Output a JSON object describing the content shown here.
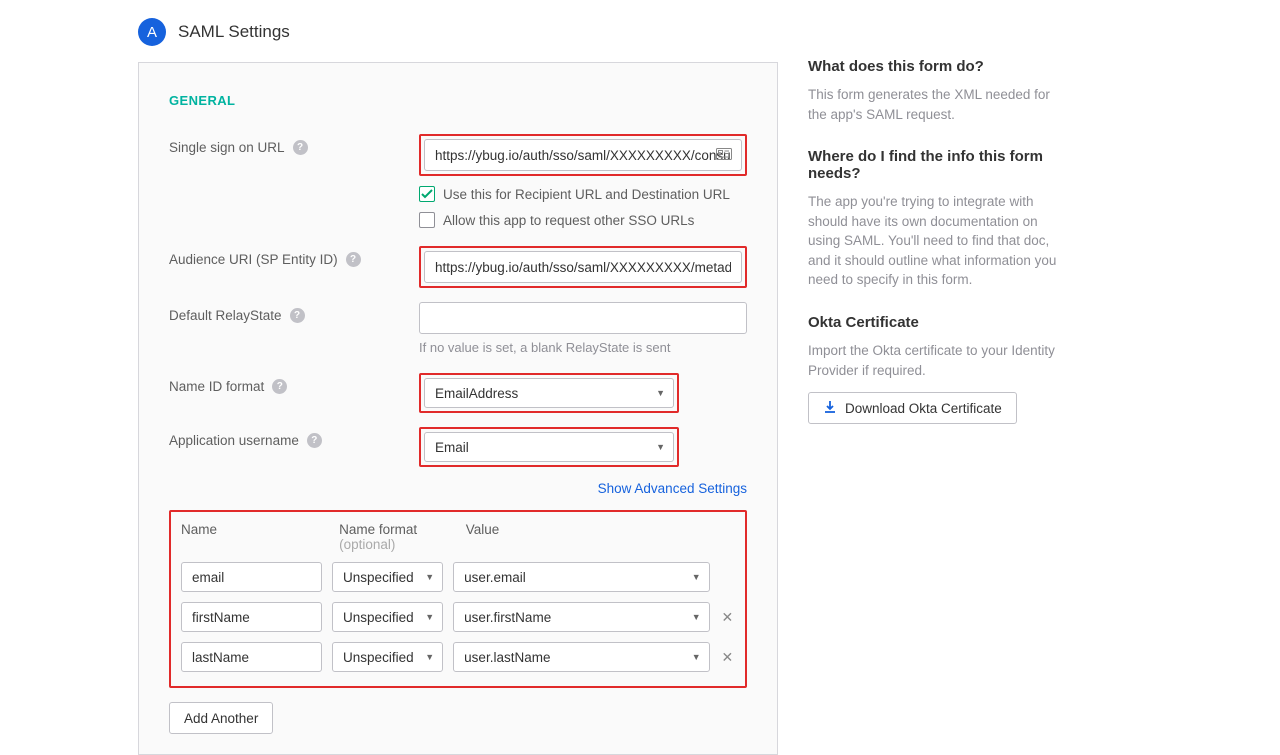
{
  "header": {
    "badge_letter": "A",
    "title": "SAML Settings"
  },
  "section": {
    "general_label": "GENERAL"
  },
  "fields": {
    "sso_url": {
      "label": "Single sign on URL",
      "value": "https://ybug.io/auth/sso/saml/XXXXXXXXX/consume"
    },
    "use_for_recipient": {
      "label": "Use this for Recipient URL and Destination URL",
      "checked": true
    },
    "allow_other_sso": {
      "label": "Allow this app to request other SSO URLs",
      "checked": false
    },
    "audience_uri": {
      "label": "Audience URI (SP Entity ID)",
      "value": "https://ybug.io/auth/sso/saml/XXXXXXXXX/metadata"
    },
    "relay_state": {
      "label": "Default RelayState",
      "value": "",
      "hint": "If no value is set, a blank RelayState is sent"
    },
    "name_id_format": {
      "label": "Name ID format",
      "value": "EmailAddress"
    },
    "app_username": {
      "label": "Application username",
      "value": "Email"
    }
  },
  "advanced_link": "Show Advanced Settings",
  "attrs": {
    "headers": {
      "name": "Name",
      "format": "Name format",
      "optional": "(optional)",
      "value": "Value"
    },
    "rows": [
      {
        "name": "email",
        "format": "Unspecified",
        "value": "user.email",
        "removable": false
      },
      {
        "name": "firstName",
        "format": "Unspecified",
        "value": "user.firstName",
        "removable": true
      },
      {
        "name": "lastName",
        "format": "Unspecified",
        "value": "user.lastName",
        "removable": true
      }
    ],
    "add_label": "Add Another"
  },
  "sidebar": {
    "q1": "What does this form do?",
    "a1": "This form generates the XML needed for the app's SAML request.",
    "q2": "Where do I find the info this form needs?",
    "a2": "The app you're trying to integrate with should have its own documentation on using SAML. You'll need to find that doc, and it should outline what information you need to specify in this form.",
    "q3": "Okta Certificate",
    "a3": "Import the Okta certificate to your Identity Provider if required.",
    "download_label": "Download Okta Certificate"
  },
  "colors": {
    "highlight": "#e12a2a",
    "accent_teal": "#00b3a0",
    "link": "#1662dd",
    "badge": "#1662dd",
    "check": "#00a870"
  }
}
